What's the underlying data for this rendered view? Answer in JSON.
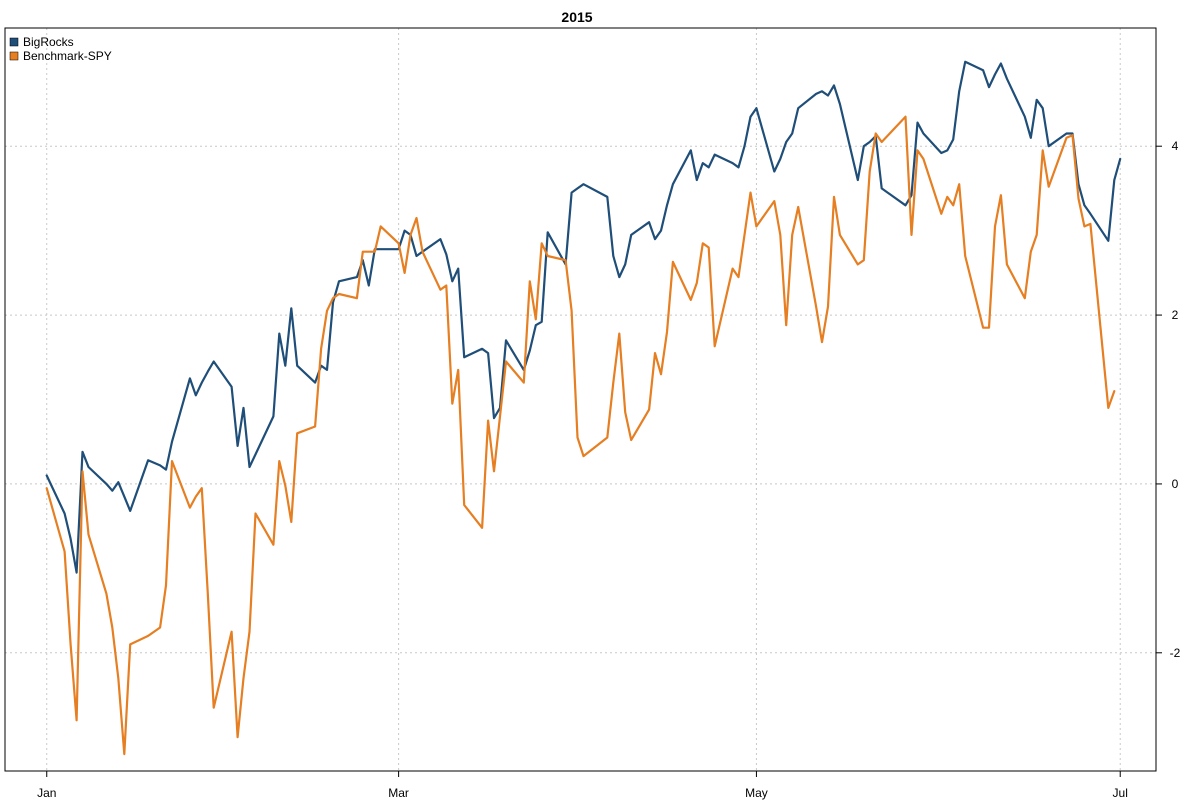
{
  "chart_data": {
    "type": "line",
    "title": "2015",
    "xlabel": "",
    "ylabel": "",
    "x_ticks": [
      {
        "label": "Jan",
        "date": "2015-01-02"
      },
      {
        "label": "Mar",
        "date": "2015-03-02"
      },
      {
        "label": "May",
        "date": "2015-05-01"
      },
      {
        "label": "Jul",
        "date": "2015-07-01"
      }
    ],
    "xlim": [
      "2014-12-26",
      "2015-07-07"
    ],
    "y_ticks": [
      -2,
      0,
      2,
      4
    ],
    "ylim": [
      -3.4,
      5.4
    ],
    "grid": true,
    "legend_position": "top-left",
    "series": [
      {
        "name": "BigRocks",
        "color": "#1f4e79",
        "points": [
          [
            "2015-01-02",
            0.1
          ],
          [
            "2015-01-05",
            -0.35
          ],
          [
            "2015-01-06",
            -0.65
          ],
          [
            "2015-01-07",
            -1.05
          ],
          [
            "2015-01-08",
            0.38
          ],
          [
            "2015-01-09",
            0.2
          ],
          [
            "2015-01-12",
            0.0
          ],
          [
            "2015-01-13",
            -0.08
          ],
          [
            "2015-01-14",
            0.02
          ],
          [
            "2015-01-15",
            -0.15
          ],
          [
            "2015-01-16",
            -0.32
          ],
          [
            "2015-01-19",
            0.28
          ],
          [
            "2015-01-21",
            0.22
          ],
          [
            "2015-01-22",
            0.17
          ],
          [
            "2015-01-23",
            0.5
          ],
          [
            "2015-01-26",
            1.25
          ],
          [
            "2015-01-27",
            1.05
          ],
          [
            "2015-01-28",
            1.2
          ],
          [
            "2015-01-29",
            1.33
          ],
          [
            "2015-01-30",
            1.45
          ],
          [
            "2015-02-02",
            1.15
          ],
          [
            "2015-02-03",
            0.45
          ],
          [
            "2015-02-04",
            0.9
          ],
          [
            "2015-02-05",
            0.2
          ],
          [
            "2015-02-06",
            0.35
          ],
          [
            "2015-02-09",
            0.8
          ],
          [
            "2015-02-10",
            1.78
          ],
          [
            "2015-02-11",
            1.4
          ],
          [
            "2015-02-12",
            2.08
          ],
          [
            "2015-02-13",
            1.4
          ],
          [
            "2015-02-16",
            1.2
          ],
          [
            "2015-02-17",
            1.4
          ],
          [
            "2015-02-18",
            1.35
          ],
          [
            "2015-02-19",
            2.15
          ],
          [
            "2015-02-20",
            2.4
          ],
          [
            "2015-02-23",
            2.45
          ],
          [
            "2015-02-24",
            2.65
          ],
          [
            "2015-02-25",
            2.35
          ],
          [
            "2015-02-26",
            2.78
          ],
          [
            "2015-02-27",
            2.78
          ],
          [
            "2015-03-02",
            2.78
          ],
          [
            "2015-03-03",
            3.0
          ],
          [
            "2015-03-04",
            2.95
          ],
          [
            "2015-03-05",
            2.7
          ],
          [
            "2015-03-06",
            2.75
          ],
          [
            "2015-03-09",
            2.9
          ],
          [
            "2015-03-10",
            2.72
          ],
          [
            "2015-03-11",
            2.4
          ],
          [
            "2015-03-12",
            2.55
          ],
          [
            "2015-03-13",
            1.5
          ],
          [
            "2015-03-16",
            1.6
          ],
          [
            "2015-03-17",
            1.55
          ],
          [
            "2015-03-18",
            0.78
          ],
          [
            "2015-03-19",
            0.9
          ],
          [
            "2015-03-20",
            1.7
          ],
          [
            "2015-03-23",
            1.35
          ],
          [
            "2015-03-24",
            1.58
          ],
          [
            "2015-03-25",
            1.88
          ],
          [
            "2015-03-26",
            1.92
          ],
          [
            "2015-03-27",
            2.98
          ],
          [
            "2015-03-30",
            2.6
          ],
          [
            "2015-03-31",
            3.45
          ],
          [
            "2015-04-01",
            3.5
          ],
          [
            "2015-04-02",
            3.55
          ],
          [
            "2015-04-06",
            3.4
          ],
          [
            "2015-04-07",
            2.7
          ],
          [
            "2015-04-08",
            2.45
          ],
          [
            "2015-04-09",
            2.6
          ],
          [
            "2015-04-10",
            2.95
          ],
          [
            "2015-04-13",
            3.1
          ],
          [
            "2015-04-14",
            2.9
          ],
          [
            "2015-04-15",
            3.0
          ],
          [
            "2015-04-16",
            3.3
          ],
          [
            "2015-04-17",
            3.55
          ],
          [
            "2015-04-20",
            3.95
          ],
          [
            "2015-04-21",
            3.6
          ],
          [
            "2015-04-22",
            3.8
          ],
          [
            "2015-04-23",
            3.75
          ],
          [
            "2015-04-24",
            3.9
          ],
          [
            "2015-04-27",
            3.8
          ],
          [
            "2015-04-28",
            3.75
          ],
          [
            "2015-04-29",
            4.0
          ],
          [
            "2015-04-30",
            4.35
          ],
          [
            "2015-05-01",
            4.45
          ],
          [
            "2015-05-04",
            3.7
          ],
          [
            "2015-05-05",
            3.85
          ],
          [
            "2015-05-06",
            4.05
          ],
          [
            "2015-05-07",
            4.15
          ],
          [
            "2015-05-08",
            4.45
          ],
          [
            "2015-05-11",
            4.62
          ],
          [
            "2015-05-12",
            4.65
          ],
          [
            "2015-05-13",
            4.6
          ],
          [
            "2015-05-14",
            4.72
          ],
          [
            "2015-05-15",
            4.5
          ],
          [
            "2015-05-18",
            3.6
          ],
          [
            "2015-05-19",
            4.0
          ],
          [
            "2015-05-20",
            4.05
          ],
          [
            "2015-05-21",
            4.12
          ],
          [
            "2015-05-22",
            3.5
          ],
          [
            "2015-05-26",
            3.3
          ],
          [
            "2015-05-27",
            3.42
          ],
          [
            "2015-05-28",
            4.28
          ],
          [
            "2015-05-29",
            4.15
          ],
          [
            "2015-06-01",
            3.92
          ],
          [
            "2015-06-02",
            3.95
          ],
          [
            "2015-06-03",
            4.08
          ],
          [
            "2015-06-04",
            4.65
          ],
          [
            "2015-06-05",
            5.0
          ],
          [
            "2015-06-08",
            4.9
          ],
          [
            "2015-06-09",
            4.7
          ],
          [
            "2015-06-10",
            4.85
          ],
          [
            "2015-06-11",
            4.98
          ],
          [
            "2015-06-12",
            4.8
          ],
          [
            "2015-06-15",
            4.35
          ],
          [
            "2015-06-16",
            4.1
          ],
          [
            "2015-06-17",
            4.55
          ],
          [
            "2015-06-18",
            4.45
          ],
          [
            "2015-06-19",
            4.0
          ],
          [
            "2015-06-22",
            4.15
          ],
          [
            "2015-06-23",
            4.15
          ],
          [
            "2015-06-24",
            3.55
          ],
          [
            "2015-06-25",
            3.3
          ],
          [
            "2015-06-26",
            3.2
          ],
          [
            "2015-06-29",
            2.88
          ],
          [
            "2015-06-30",
            3.6
          ],
          [
            "2015-07-01",
            3.85
          ]
        ]
      },
      {
        "name": "Benchmark-SPY",
        "color": "#e67e22",
        "points": [
          [
            "2015-01-02",
            -0.05
          ],
          [
            "2015-01-05",
            -0.8
          ],
          [
            "2015-01-06",
            -1.9
          ],
          [
            "2015-01-07",
            -2.8
          ],
          [
            "2015-01-08",
            0.15
          ],
          [
            "2015-01-09",
            -0.6
          ],
          [
            "2015-01-12",
            -1.3
          ],
          [
            "2015-01-13",
            -1.7
          ],
          [
            "2015-01-14",
            -2.3
          ],
          [
            "2015-01-15",
            -3.2
          ],
          [
            "2015-01-16",
            -1.9
          ],
          [
            "2015-01-19",
            -1.8
          ],
          [
            "2015-01-21",
            -1.7
          ],
          [
            "2015-01-22",
            -1.2
          ],
          [
            "2015-01-23",
            0.27
          ],
          [
            "2015-01-26",
            -0.28
          ],
          [
            "2015-01-27",
            -0.15
          ],
          [
            "2015-01-28",
            -0.05
          ],
          [
            "2015-01-29",
            -1.3
          ],
          [
            "2015-01-30",
            -2.65
          ],
          [
            "2015-02-02",
            -1.75
          ],
          [
            "2015-02-03",
            -3.0
          ],
          [
            "2015-02-04",
            -2.3
          ],
          [
            "2015-02-05",
            -1.75
          ],
          [
            "2015-02-06",
            -0.35
          ],
          [
            "2015-02-09",
            -0.72
          ],
          [
            "2015-02-10",
            0.27
          ],
          [
            "2015-02-11",
            -0.02
          ],
          [
            "2015-02-12",
            -0.45
          ],
          [
            "2015-02-13",
            0.6
          ],
          [
            "2015-02-16",
            0.68
          ],
          [
            "2015-02-17",
            1.6
          ],
          [
            "2015-02-18",
            2.05
          ],
          [
            "2015-02-19",
            2.2
          ],
          [
            "2015-02-20",
            2.25
          ],
          [
            "2015-02-23",
            2.2
          ],
          [
            "2015-02-24",
            2.75
          ],
          [
            "2015-02-25",
            2.75
          ],
          [
            "2015-02-26",
            2.75
          ],
          [
            "2015-02-27",
            3.05
          ],
          [
            "2015-03-02",
            2.85
          ],
          [
            "2015-03-03",
            2.5
          ],
          [
            "2015-03-04",
            2.95
          ],
          [
            "2015-03-05",
            3.15
          ],
          [
            "2015-03-06",
            2.75
          ],
          [
            "2015-03-09",
            2.3
          ],
          [
            "2015-03-10",
            2.35
          ],
          [
            "2015-03-11",
            0.95
          ],
          [
            "2015-03-12",
            1.35
          ],
          [
            "2015-03-13",
            -0.25
          ],
          [
            "2015-03-16",
            -0.52
          ],
          [
            "2015-03-17",
            0.75
          ],
          [
            "2015-03-18",
            0.15
          ],
          [
            "2015-03-19",
            0.8
          ],
          [
            "2015-03-20",
            1.45
          ],
          [
            "2015-03-23",
            1.2
          ],
          [
            "2015-03-24",
            2.4
          ],
          [
            "2015-03-25",
            1.95
          ],
          [
            "2015-03-26",
            2.85
          ],
          [
            "2015-03-27",
            2.7
          ],
          [
            "2015-03-30",
            2.65
          ],
          [
            "2015-03-31",
            2.05
          ],
          [
            "2015-04-01",
            0.55
          ],
          [
            "2015-04-02",
            0.33
          ],
          [
            "2015-04-06",
            0.55
          ],
          [
            "2015-04-07",
            1.2
          ],
          [
            "2015-04-08",
            1.78
          ],
          [
            "2015-04-09",
            0.85
          ],
          [
            "2015-04-10",
            0.52
          ],
          [
            "2015-04-13",
            0.88
          ],
          [
            "2015-04-14",
            1.55
          ],
          [
            "2015-04-15",
            1.3
          ],
          [
            "2015-04-16",
            1.8
          ],
          [
            "2015-04-17",
            2.63
          ],
          [
            "2015-04-20",
            2.18
          ],
          [
            "2015-04-21",
            2.38
          ],
          [
            "2015-04-22",
            2.85
          ],
          [
            "2015-04-23",
            2.8
          ],
          [
            "2015-04-24",
            1.63
          ],
          [
            "2015-04-27",
            2.55
          ],
          [
            "2015-04-28",
            2.45
          ],
          [
            "2015-04-29",
            2.95
          ],
          [
            "2015-04-30",
            3.45
          ],
          [
            "2015-05-01",
            3.05
          ],
          [
            "2015-05-04",
            3.35
          ],
          [
            "2015-05-05",
            2.95
          ],
          [
            "2015-05-06",
            1.88
          ],
          [
            "2015-05-07",
            2.95
          ],
          [
            "2015-05-08",
            3.28
          ],
          [
            "2015-05-11",
            2.1
          ],
          [
            "2015-05-12",
            1.68
          ],
          [
            "2015-05-13",
            2.1
          ],
          [
            "2015-05-14",
            3.4
          ],
          [
            "2015-05-15",
            2.95
          ],
          [
            "2015-05-18",
            2.6
          ],
          [
            "2015-05-19",
            2.65
          ],
          [
            "2015-05-20",
            3.7
          ],
          [
            "2015-05-21",
            4.15
          ],
          [
            "2015-05-22",
            4.05
          ],
          [
            "2015-05-26",
            4.35
          ],
          [
            "2015-05-27",
            2.95
          ],
          [
            "2015-05-28",
            3.95
          ],
          [
            "2015-05-29",
            3.85
          ],
          [
            "2015-06-01",
            3.2
          ],
          [
            "2015-06-02",
            3.4
          ],
          [
            "2015-06-03",
            3.3
          ],
          [
            "2015-06-04",
            3.55
          ],
          [
            "2015-06-05",
            2.7
          ],
          [
            "2015-06-08",
            1.85
          ],
          [
            "2015-06-09",
            1.85
          ],
          [
            "2015-06-10",
            3.05
          ],
          [
            "2015-06-11",
            3.42
          ],
          [
            "2015-06-12",
            2.6
          ],
          [
            "2015-06-15",
            2.2
          ],
          [
            "2015-06-16",
            2.75
          ],
          [
            "2015-06-17",
            2.95
          ],
          [
            "2015-06-18",
            3.95
          ],
          [
            "2015-06-19",
            3.52
          ],
          [
            "2015-06-22",
            4.1
          ],
          [
            "2015-06-23",
            4.13
          ],
          [
            "2015-06-24",
            3.38
          ],
          [
            "2015-06-25",
            3.05
          ],
          [
            "2015-06-26",
            3.08
          ],
          [
            "2015-06-29",
            0.9
          ],
          [
            "2015-06-30",
            1.1
          ]
        ]
      }
    ]
  }
}
